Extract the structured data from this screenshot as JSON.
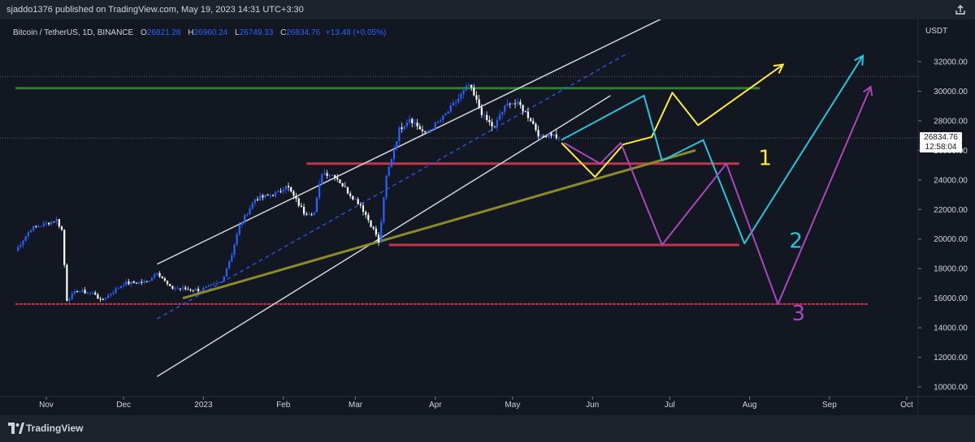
{
  "header": {
    "published": "sjaddo1376 published on TradingView.com, May 19, 2023 14:31 UTC+3:30"
  },
  "legend": {
    "symbol": "Bitcoin / TetherUS, 1D, BINANCE",
    "o_label": "O",
    "o": "26821.28",
    "h_label": "H",
    "h": "26960.24",
    "l_label": "L",
    "l": "26749.33",
    "c_label": "C",
    "c": "26834.76",
    "change": "+13.48 (+0.05%)"
  },
  "price_axis": {
    "currency": "USDT",
    "last_price": "26834.76",
    "countdown": "12:58:04"
  },
  "footer": {
    "brand": "TradingView"
  },
  "colors": {
    "bg": "#131722",
    "up": "#2962ff",
    "down": "#ffffff",
    "green_line": "#2e7d32",
    "red_line": "#c2344a",
    "olive_line": "#8d8a2a",
    "channel": "#d1d4dc",
    "yellow": "#ffeb3b",
    "cyan": "#26c6da",
    "purple": "#ab47bc"
  },
  "chart_data": {
    "type": "candlestick",
    "symbol": "Bitcoin / TetherUS",
    "ylim": [
      9000,
      35000
    ],
    "y_ticks": [
      10000,
      12000,
      14000,
      16000,
      18000,
      20000,
      22000,
      24000,
      26000,
      28000,
      30000,
      32000
    ],
    "y_tick_labels": [
      "10000.00",
      "12000.00",
      "14000.00",
      "16000.00",
      "18000.00",
      "20000.00",
      "22000.00",
      "24000.00",
      "26000.00",
      "28000.00",
      "30000.00",
      "32000.00"
    ],
    "x_ticks": [
      {
        "date": "2022-11-01",
        "label": "Nov"
      },
      {
        "date": "2022-12-01",
        "label": "Dec"
      },
      {
        "date": "2023-01-01",
        "label": "2023"
      },
      {
        "date": "2023-02-01",
        "label": "Feb"
      },
      {
        "date": "2023-03-01",
        "label": "Mar"
      },
      {
        "date": "2023-04-01",
        "label": "Apr"
      },
      {
        "date": "2023-05-01",
        "label": "May"
      },
      {
        "date": "2023-06-01",
        "label": "Jun"
      },
      {
        "date": "2023-07-01",
        "label": "Jul"
      },
      {
        "date": "2023-08-01",
        "label": "Aug"
      },
      {
        "date": "2023-09-01",
        "label": "Sep"
      },
      {
        "date": "2023-10-01",
        "label": "Oct"
      }
    ],
    "price_path": [
      [
        "2022-10-20",
        19200
      ],
      [
        "2022-10-26",
        20700
      ],
      [
        "2022-11-05",
        21300
      ],
      [
        "2022-11-07",
        20600
      ],
      [
        "2022-11-09",
        15900
      ],
      [
        "2022-11-13",
        16500
      ],
      [
        "2022-11-20",
        16300
      ],
      [
        "2022-11-22",
        15800
      ],
      [
        "2022-12-01",
        17000
      ],
      [
        "2022-12-10",
        17100
      ],
      [
        "2022-12-14",
        17800
      ],
      [
        "2022-12-19",
        16700
      ],
      [
        "2022-12-31",
        16550
      ],
      [
        "2023-01-08",
        17100
      ],
      [
        "2023-01-12",
        19000
      ],
      [
        "2023-01-15",
        20900
      ],
      [
        "2023-01-21",
        22700
      ],
      [
        "2023-01-30",
        23100
      ],
      [
        "2023-02-02",
        23700
      ],
      [
        "2023-02-09",
        21800
      ],
      [
        "2023-02-13",
        21800
      ],
      [
        "2023-02-16",
        24500
      ],
      [
        "2023-02-21",
        24300
      ],
      [
        "2023-02-26",
        23200
      ],
      [
        "2023-03-03",
        22300
      ],
      [
        "2023-03-09",
        20300
      ],
      [
        "2023-03-10",
        19700
      ],
      [
        "2023-03-13",
        24200
      ],
      [
        "2023-03-18",
        27400
      ],
      [
        "2023-03-22",
        28200
      ],
      [
        "2023-03-28",
        27100
      ],
      [
        "2023-04-04",
        28200
      ],
      [
        "2023-04-10",
        29500
      ],
      [
        "2023-04-14",
        30400
      ],
      [
        "2023-04-20",
        28200
      ],
      [
        "2023-04-24",
        27500
      ],
      [
        "2023-04-26",
        28400
      ],
      [
        "2023-04-30",
        29300
      ],
      [
        "2023-05-04",
        29000
      ],
      [
        "2023-05-08",
        28100
      ],
      [
        "2023-05-12",
        26800
      ],
      [
        "2023-05-15",
        27200
      ],
      [
        "2023-05-19",
        26834
      ]
    ],
    "horizontal_levels": [
      {
        "price": 30200,
        "from": "2022-10-20",
        "to": "2023-08-05",
        "color": "green"
      },
      {
        "price": 25100,
        "from": "2023-02-10",
        "to": "2023-07-28",
        "color": "red"
      },
      {
        "price": 19600,
        "from": "2023-03-14",
        "to": "2023-07-28",
        "color": "red"
      },
      {
        "price": 15600,
        "from": "2022-10-20",
        "to": "2023-09-16",
        "color": "red"
      }
    ],
    "trendlines": [
      {
        "name": "channel-upper",
        "points": [
          [
            "2022-12-14",
            18300
          ],
          [
            "2023-06-29",
            35000
          ]
        ],
        "color": "channel",
        "style": "solid"
      },
      {
        "name": "channel-lower",
        "points": [
          [
            "2022-12-14",
            10700
          ],
          [
            "2023-06-08",
            29700
          ]
        ],
        "color": "channel",
        "style": "solid"
      },
      {
        "name": "channel-mid",
        "points": [
          [
            "2022-12-14",
            14600
          ],
          [
            "2023-06-15",
            32600
          ]
        ],
        "color": "up",
        "style": "dashed"
      },
      {
        "name": "support",
        "points": [
          [
            "2022-12-24",
            16000
          ],
          [
            "2023-07-11",
            26000
          ]
        ],
        "color": "olive",
        "style": "solid"
      }
    ],
    "scenarios": [
      {
        "label": "1",
        "color": "yellow",
        "label_at": [
          "2023-08-07",
          25000
        ],
        "points": [
          [
            "2023-05-20",
            26500
          ],
          [
            "2023-06-02",
            24200
          ],
          [
            "2023-06-13",
            26400
          ],
          [
            "2023-06-24",
            26900
          ],
          [
            "2023-07-02",
            29900
          ],
          [
            "2023-07-12",
            27700
          ],
          [
            "2023-08-14",
            31800
          ]
        ]
      },
      {
        "label": "2",
        "color": "cyan",
        "label_at": [
          "2023-08-19",
          19400
        ],
        "points": [
          [
            "2023-05-20",
            26700
          ],
          [
            "2023-06-21",
            29700
          ],
          [
            "2023-06-28",
            25300
          ],
          [
            "2023-07-14",
            26700
          ],
          [
            "2023-07-30",
            19700
          ],
          [
            "2023-09-14",
            32400
          ]
        ]
      },
      {
        "label": "3",
        "color": "purple",
        "label_at": [
          "2023-08-20",
          14500
        ],
        "points": [
          [
            "2023-05-21",
            26500
          ],
          [
            "2023-06-04",
            25100
          ],
          [
            "2023-06-12",
            26500
          ],
          [
            "2023-06-28",
            19600
          ],
          [
            "2023-07-23",
            25100
          ],
          [
            "2023-08-12",
            15600
          ],
          [
            "2023-09-17",
            30300
          ]
        ]
      }
    ],
    "last_price": 26834.76
  }
}
